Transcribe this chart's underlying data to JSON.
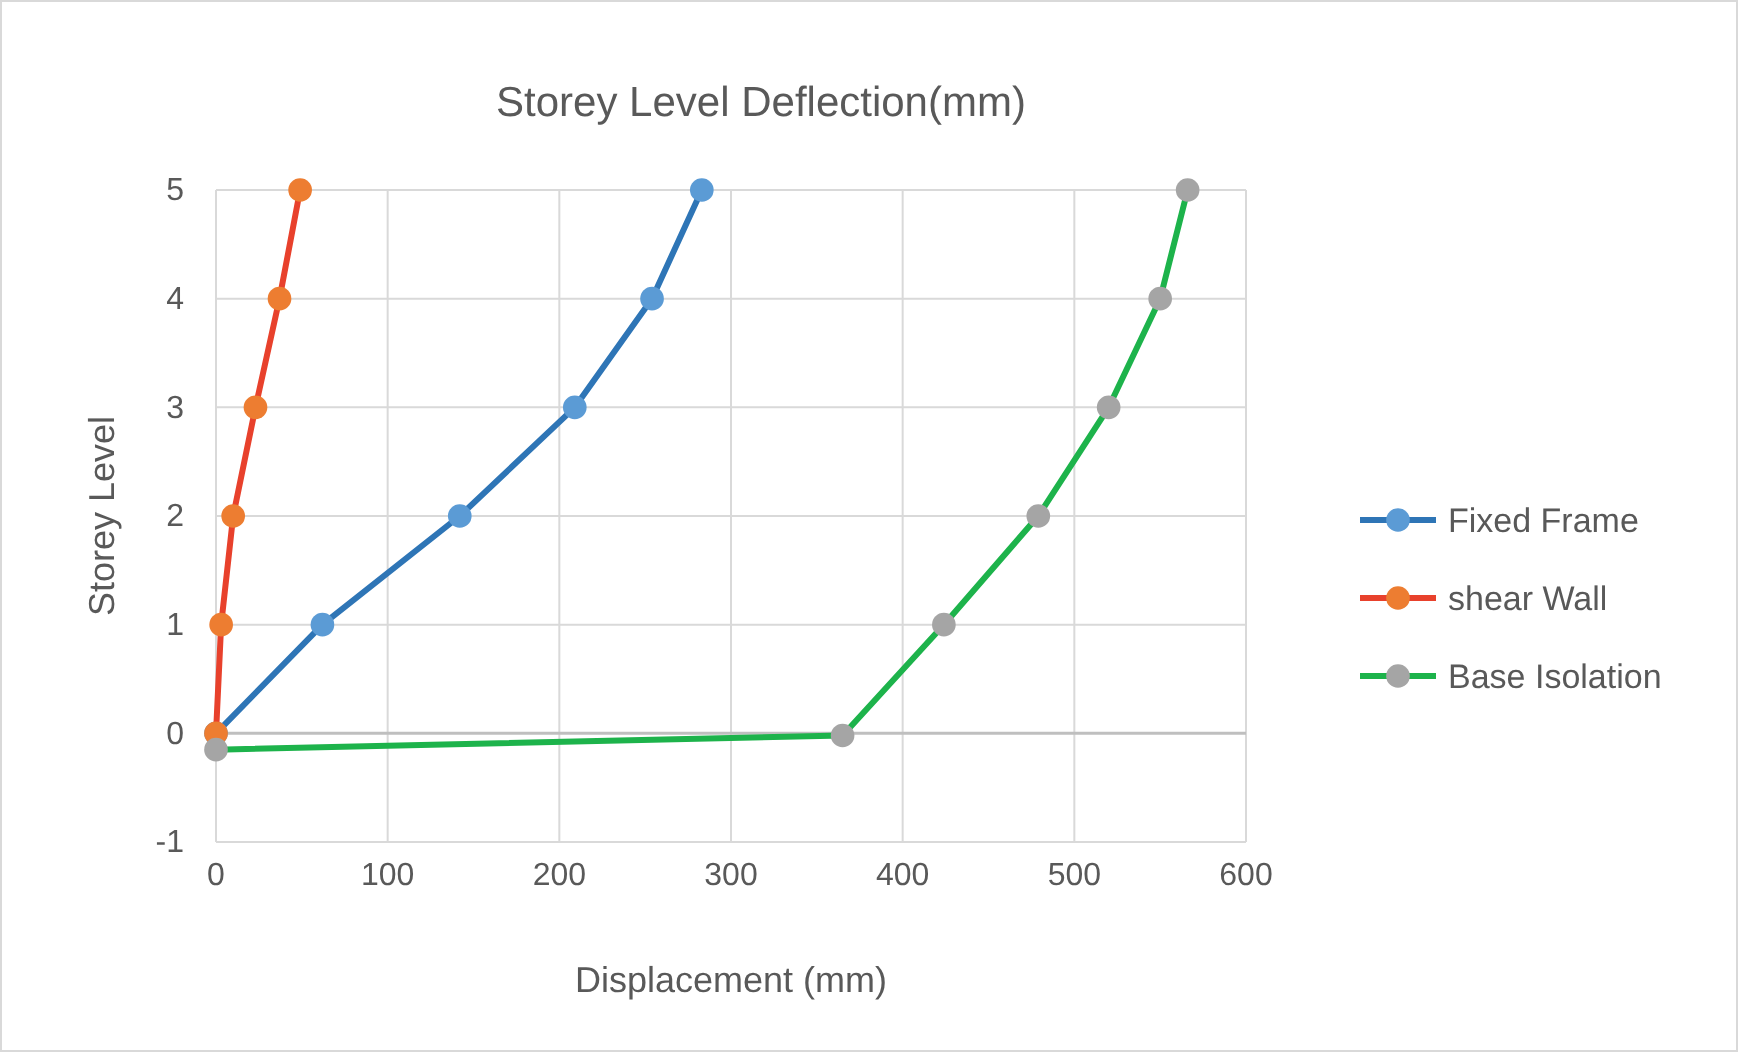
{
  "chart_data": {
    "type": "line",
    "title": "Storey Level Deflection(mm)",
    "xlabel": "Displacement (mm)",
    "ylabel": "Storey Level",
    "xlim": [
      0,
      600
    ],
    "xticks": [
      0,
      100,
      200,
      300,
      400,
      500,
      600
    ],
    "ylim": [
      -1,
      5
    ],
    "yticks": [
      -1,
      0,
      1,
      2,
      3,
      4,
      5
    ],
    "grid": true,
    "legend": "right",
    "marker": "circle",
    "series": [
      {
        "name": "Fixed Frame",
        "color": "#2e75b6",
        "colors": [
          "#5b9bd5",
          "#5b9bd5",
          "#5b9bd5",
          "#5b9bd5",
          "#5b9bd5",
          "#5b9bd5"
        ],
        "x": [
          0,
          62,
          142,
          209,
          254,
          283
        ],
        "values": [
          0,
          1,
          2,
          3,
          4,
          5
        ]
      },
      {
        "name": "shear Wall",
        "color": "#e8412c",
        "colors": [
          "#ed7d31",
          "#ed7d31",
          "#ed7d31",
          "#ed7d31",
          "#ed7d31",
          "#ed7d31"
        ],
        "x": [
          0,
          3,
          10,
          23,
          37,
          49
        ],
        "values": [
          0,
          1,
          2,
          3,
          4,
          5
        ]
      },
      {
        "name": "Base Isolation",
        "color": "#1db34b",
        "colors": [
          "#a5a5a5",
          "#a5a5a5",
          "#a5a5a5",
          "#a5a5a5",
          "#a5a5a5",
          "#a5a5a5",
          "#a5a5a5"
        ],
        "x": [
          0,
          365,
          424,
          479,
          520,
          550,
          566
        ],
        "values": [
          -0.15,
          -0.02,
          1,
          2,
          3,
          4,
          5
        ]
      }
    ]
  }
}
